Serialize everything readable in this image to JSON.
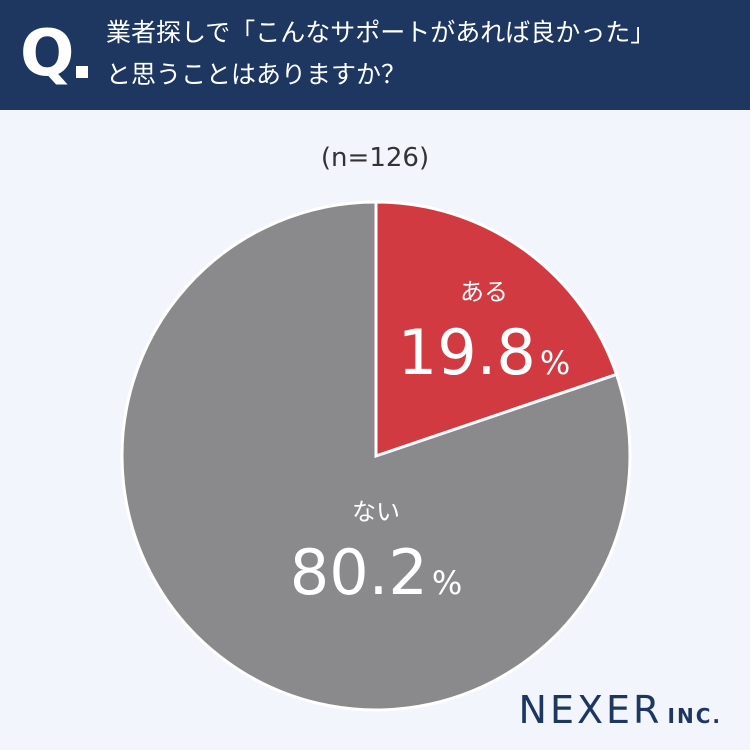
{
  "header": {
    "q_mark": "Q",
    "question_line1": "業者探しで「こんなサポートがあれば良かった」",
    "question_line2": "と思うことはありますか？"
  },
  "sample_size": "(n=126)",
  "chart_data": {
    "type": "pie",
    "slices": [
      {
        "label": "ある",
        "value": 19.8,
        "display": "19.8",
        "unit": "%",
        "color": "#d03a40"
      },
      {
        "label": "ない",
        "value": 80.2,
        "display": "80.2",
        "unit": "%",
        "color": "#8a8a8c"
      }
    ],
    "start": "12 o'clock",
    "direction": "clockwise"
  },
  "brand": {
    "main": "NEXER",
    "sub": "INC."
  },
  "colors": {
    "header_bg": "#1d3760",
    "page_bg": "#f2f5fc",
    "brand": "#1d3760"
  }
}
